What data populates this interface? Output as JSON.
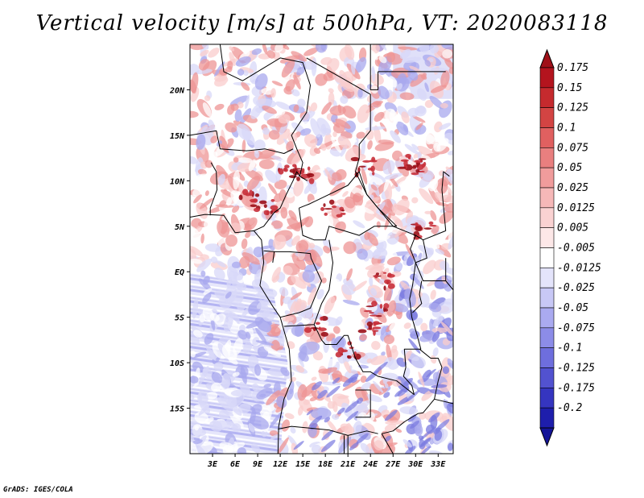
{
  "title": "Vertical velocity [m/s] at 500hPa, VT: 2020083118",
  "footer": "GrADS: IGES/COLA",
  "map": {
    "lon_range": [
      0,
      35
    ],
    "lat_range": [
      -20,
      25
    ],
    "lon_ticks": [
      {
        "value": 3,
        "label": "3E"
      },
      {
        "value": 6,
        "label": "6E"
      },
      {
        "value": 9,
        "label": "9E"
      },
      {
        "value": 12,
        "label": "12E"
      },
      {
        "value": 15,
        "label": "15E"
      },
      {
        "value": 18,
        "label": "18E"
      },
      {
        "value": 21,
        "label": "21E"
      },
      {
        "value": 24,
        "label": "24E"
      },
      {
        "value": 27,
        "label": "27E"
      },
      {
        "value": 30,
        "label": "30E"
      },
      {
        "value": 33,
        "label": "33E"
      }
    ],
    "lat_ticks": [
      {
        "value": 20,
        "label": "20N"
      },
      {
        "value": 15,
        "label": "15N"
      },
      {
        "value": 10,
        "label": "10N"
      },
      {
        "value": 5,
        "label": "5N"
      },
      {
        "value": 0,
        "label": "EQ"
      },
      {
        "value": -5,
        "label": "5S"
      },
      {
        "value": -10,
        "label": "10S"
      },
      {
        "value": -15,
        "label": "15S"
      }
    ]
  },
  "colorbar": {
    "levels": [
      {
        "label": "0.175",
        "color": "#b4141e"
      },
      {
        "label": "0.15",
        "color": "#c52a2e"
      },
      {
        "label": "0.125",
        "color": "#d34443"
      },
      {
        "label": "0.1",
        "color": "#e06060"
      },
      {
        "label": "0.075",
        "color": "#e97f7f"
      },
      {
        "label": "0.05",
        "color": "#f09c9c"
      },
      {
        "label": "0.025",
        "color": "#f6b8b8"
      },
      {
        "label": "0.0125",
        "color": "#fad2d2"
      },
      {
        "label": "0.005",
        "color": "#fde8e8"
      },
      {
        "label": "-0.005",
        "color": "#ffffff"
      },
      {
        "label": "-0.0125",
        "color": "#e4e4fb"
      },
      {
        "label": "-0.025",
        "color": "#c8c8f6"
      },
      {
        "label": "-0.05",
        "color": "#aaaaf0"
      },
      {
        "label": "-0.075",
        "color": "#8c8ce8"
      },
      {
        "label": "-0.1",
        "color": "#6e6edd"
      },
      {
        "label": "-0.125",
        "color": "#5252d0"
      },
      {
        "label": "-0.175",
        "color": "#3535c0"
      },
      {
        "label": "-0.2",
        "color": "#1e1eac"
      }
    ],
    "top_cap_color": "#a01018",
    "bottom_cap_color": "#141498"
  },
  "colors": {
    "up_strong": "#c8303a",
    "up_mid": "#ee9494",
    "up_light": "#f9cccc",
    "down_light": "#d8d8f8",
    "down_mid": "#a8a8ee",
    "down_strong": "#7a7ae0"
  }
}
